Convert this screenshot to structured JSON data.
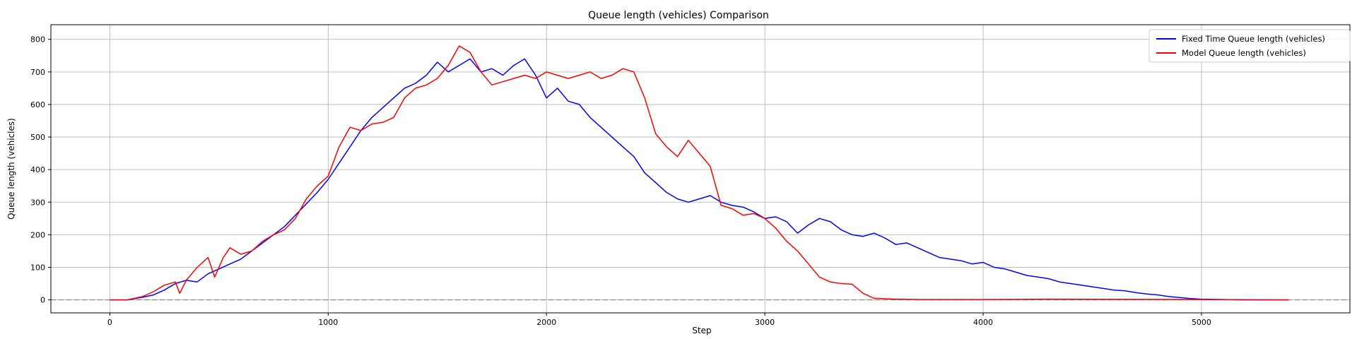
{
  "chart_data": {
    "type": "line",
    "title": "Queue length (vehicles) Comparison",
    "xlabel": "Step",
    "ylabel": "Queue length (vehicles)",
    "xlim": [
      -270,
      5680
    ],
    "ylim": [
      -40,
      845
    ],
    "xticks": [
      0,
      1000,
      2000,
      3000,
      4000,
      5000
    ],
    "yticks": [
      0,
      100,
      200,
      300,
      400,
      500,
      600,
      700,
      800
    ],
    "grid": true,
    "legend_position": "top-right",
    "reference_line": {
      "y": 0,
      "style": "dashed",
      "color": "#808080"
    },
    "series": [
      {
        "name": "Fixed Time Queue length (vehicles)",
        "color": "#0000ff",
        "points": [
          [
            0,
            0
          ],
          [
            80,
            0
          ],
          [
            150,
            8
          ],
          [
            200,
            15
          ],
          [
            250,
            30
          ],
          [
            300,
            50
          ],
          [
            350,
            60
          ],
          [
            400,
            55
          ],
          [
            450,
            80
          ],
          [
            500,
            95
          ],
          [
            550,
            110
          ],
          [
            600,
            125
          ],
          [
            650,
            150
          ],
          [
            700,
            175
          ],
          [
            750,
            200
          ],
          [
            800,
            225
          ],
          [
            850,
            260
          ],
          [
            900,
            295
          ],
          [
            950,
            330
          ],
          [
            1000,
            370
          ],
          [
            1050,
            420
          ],
          [
            1100,
            470
          ],
          [
            1150,
            520
          ],
          [
            1200,
            560
          ],
          [
            1250,
            590
          ],
          [
            1300,
            620
          ],
          [
            1350,
            650
          ],
          [
            1400,
            665
          ],
          [
            1450,
            690
          ],
          [
            1500,
            730
          ],
          [
            1550,
            700
          ],
          [
            1600,
            720
          ],
          [
            1650,
            740
          ],
          [
            1700,
            700
          ],
          [
            1750,
            710
          ],
          [
            1800,
            690
          ],
          [
            1850,
            720
          ],
          [
            1900,
            740
          ],
          [
            1950,
            690
          ],
          [
            2000,
            620
          ],
          [
            2050,
            650
          ],
          [
            2100,
            610
          ],
          [
            2150,
            600
          ],
          [
            2200,
            560
          ],
          [
            2250,
            530
          ],
          [
            2300,
            500
          ],
          [
            2350,
            470
          ],
          [
            2400,
            440
          ],
          [
            2450,
            390
          ],
          [
            2500,
            360
          ],
          [
            2550,
            330
          ],
          [
            2600,
            310
          ],
          [
            2650,
            300
          ],
          [
            2700,
            310
          ],
          [
            2750,
            320
          ],
          [
            2800,
            300
          ],
          [
            2850,
            290
          ],
          [
            2900,
            285
          ],
          [
            2950,
            270
          ],
          [
            3000,
            250
          ],
          [
            3050,
            255
          ],
          [
            3100,
            240
          ],
          [
            3150,
            205
          ],
          [
            3200,
            230
          ],
          [
            3250,
            250
          ],
          [
            3300,
            240
          ],
          [
            3350,
            215
          ],
          [
            3400,
            200
          ],
          [
            3450,
            195
          ],
          [
            3500,
            205
          ],
          [
            3550,
            190
          ],
          [
            3600,
            170
          ],
          [
            3650,
            175
          ],
          [
            3700,
            160
          ],
          [
            3750,
            145
          ],
          [
            3800,
            130
          ],
          [
            3850,
            125
          ],
          [
            3900,
            120
          ],
          [
            3950,
            110
          ],
          [
            4000,
            115
          ],
          [
            4050,
            100
          ],
          [
            4100,
            95
          ],
          [
            4150,
            85
          ],
          [
            4200,
            75
          ],
          [
            4250,
            70
          ],
          [
            4300,
            65
          ],
          [
            4350,
            55
          ],
          [
            4400,
            50
          ],
          [
            4450,
            45
          ],
          [
            4500,
            40
          ],
          [
            4550,
            35
          ],
          [
            4600,
            30
          ],
          [
            4650,
            28
          ],
          [
            4700,
            22
          ],
          [
            4750,
            18
          ],
          [
            4800,
            15
          ],
          [
            4850,
            10
          ],
          [
            4900,
            7
          ],
          [
            4950,
            4
          ],
          [
            5000,
            2
          ],
          [
            5100,
            1
          ],
          [
            5200,
            0
          ],
          [
            5400,
            0
          ]
        ]
      },
      {
        "name": "Model Queue length (vehicles)",
        "color": "#ff0000",
        "points": [
          [
            0,
            0
          ],
          [
            80,
            0
          ],
          [
            150,
            10
          ],
          [
            200,
            25
          ],
          [
            250,
            45
          ],
          [
            300,
            55
          ],
          [
            320,
            20
          ],
          [
            350,
            60
          ],
          [
            400,
            100
          ],
          [
            450,
            130
          ],
          [
            480,
            70
          ],
          [
            520,
            130
          ],
          [
            550,
            160
          ],
          [
            600,
            140
          ],
          [
            650,
            150
          ],
          [
            700,
            180
          ],
          [
            750,
            200
          ],
          [
            800,
            215
          ],
          [
            850,
            250
          ],
          [
            900,
            310
          ],
          [
            950,
            350
          ],
          [
            1000,
            380
          ],
          [
            1050,
            470
          ],
          [
            1100,
            530
          ],
          [
            1150,
            520
          ],
          [
            1200,
            540
          ],
          [
            1250,
            545
          ],
          [
            1300,
            560
          ],
          [
            1350,
            620
          ],
          [
            1400,
            650
          ],
          [
            1450,
            660
          ],
          [
            1500,
            680
          ],
          [
            1550,
            720
          ],
          [
            1600,
            780
          ],
          [
            1650,
            760
          ],
          [
            1700,
            700
          ],
          [
            1750,
            660
          ],
          [
            1800,
            670
          ],
          [
            1850,
            680
          ],
          [
            1900,
            690
          ],
          [
            1950,
            680
          ],
          [
            2000,
            700
          ],
          [
            2050,
            690
          ],
          [
            2100,
            680
          ],
          [
            2150,
            690
          ],
          [
            2200,
            700
          ],
          [
            2250,
            680
          ],
          [
            2300,
            690
          ],
          [
            2350,
            710
          ],
          [
            2400,
            700
          ],
          [
            2450,
            620
          ],
          [
            2500,
            510
          ],
          [
            2550,
            470
          ],
          [
            2600,
            440
          ],
          [
            2650,
            490
          ],
          [
            2700,
            450
          ],
          [
            2750,
            410
          ],
          [
            2800,
            290
          ],
          [
            2850,
            280
          ],
          [
            2900,
            260
          ],
          [
            2950,
            265
          ],
          [
            3000,
            250
          ],
          [
            3050,
            220
          ],
          [
            3100,
            180
          ],
          [
            3150,
            150
          ],
          [
            3200,
            110
          ],
          [
            3250,
            70
          ],
          [
            3300,
            55
          ],
          [
            3350,
            50
          ],
          [
            3400,
            48
          ],
          [
            3450,
            20
          ],
          [
            3500,
            5
          ],
          [
            3600,
            2
          ],
          [
            3700,
            1
          ],
          [
            4000,
            1
          ],
          [
            4300,
            2
          ],
          [
            5000,
            1
          ],
          [
            5400,
            0
          ]
        ]
      }
    ]
  }
}
